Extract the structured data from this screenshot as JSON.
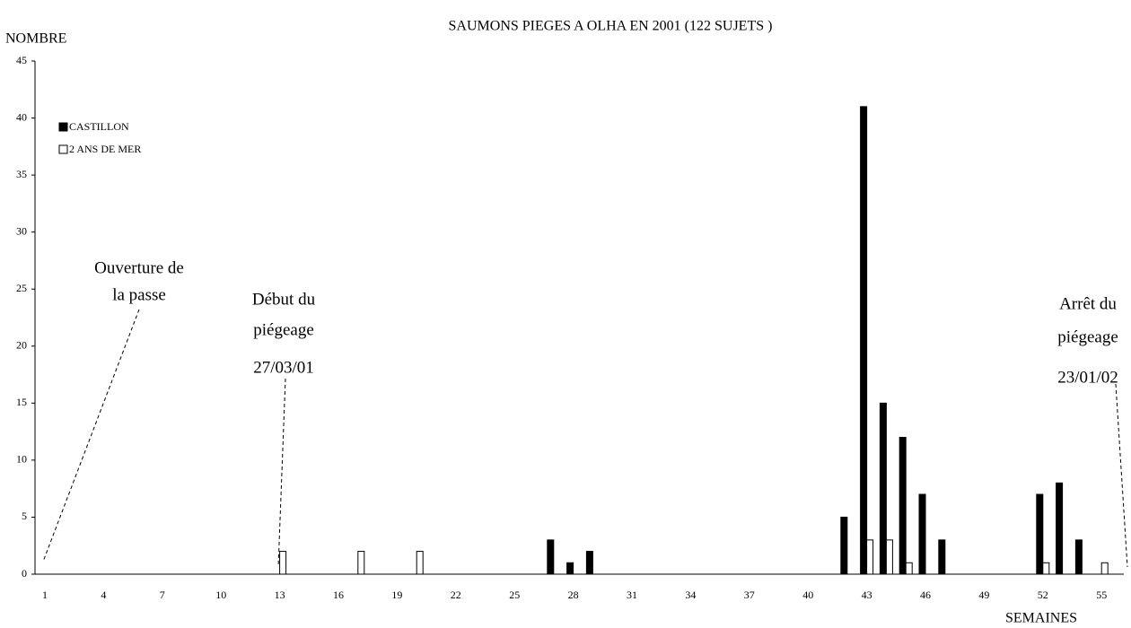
{
  "chart_data": {
    "type": "bar",
    "title": "SAUMONS PIEGES A OLHA   EN 2001 (122 SUJETS )",
    "y_label": "NOMBRE",
    "x_label": "SEMAINES",
    "categories": [
      "1",
      null,
      null,
      "4",
      null,
      null,
      "7",
      null,
      null,
      "10",
      null,
      null,
      "13",
      null,
      null,
      "16",
      null,
      null,
      "19",
      null,
      null,
      "22",
      null,
      null,
      "25",
      null,
      null,
      "28",
      null,
      null,
      "31",
      null,
      null,
      "34",
      null,
      null,
      "37",
      null,
      null,
      "40",
      null,
      null,
      "43",
      null,
      null,
      "46",
      null,
      null,
      "49",
      null,
      null,
      "52",
      null,
      null,
      "55",
      null
    ],
    "series": [
      {
        "name": "CASTILLON",
        "color": "#000000",
        "values": [
          0,
          0,
          0,
          0,
          0,
          0,
          0,
          0,
          0,
          0,
          0,
          0,
          0,
          0,
          0,
          0,
          0,
          0,
          0,
          0,
          0,
          0,
          0,
          0,
          0,
          0,
          3,
          1,
          2,
          0,
          0,
          0,
          0,
          0,
          0,
          0,
          0,
          0,
          0,
          0,
          0,
          5,
          41,
          15,
          12,
          7,
          3,
          0,
          0,
          0,
          0,
          7,
          8,
          3,
          0,
          0
        ]
      },
      {
        "name": "2 ANS DE MER",
        "color": "#ffffff",
        "values": [
          0,
          0,
          0,
          0,
          0,
          0,
          0,
          0,
          0,
          0,
          0,
          0,
          2,
          0,
          0,
          0,
          2,
          0,
          0,
          2,
          0,
          0,
          0,
          0,
          0,
          0,
          0,
          0,
          0,
          0,
          0,
          0,
          0,
          0,
          0,
          0,
          0,
          0,
          0,
          0,
          0,
          0,
          3,
          3,
          1,
          0,
          0,
          0,
          0,
          0,
          0,
          1,
          0,
          0,
          1,
          0
        ]
      }
    ],
    "ylim": [
      0,
      45
    ],
    "yticks": [
      0,
      5,
      10,
      15,
      20,
      25,
      30,
      35,
      40,
      45
    ],
    "legend": "upper-left",
    "annotations": [
      {
        "lines": [
          "Ouverture de",
          "la passe"
        ]
      },
      {
        "lines": [
          "Début du",
          "piégeage",
          "27/03/01"
        ]
      },
      {
        "lines": [
          "Arrêt du",
          "piégeage",
          "23/01/02"
        ]
      }
    ]
  }
}
